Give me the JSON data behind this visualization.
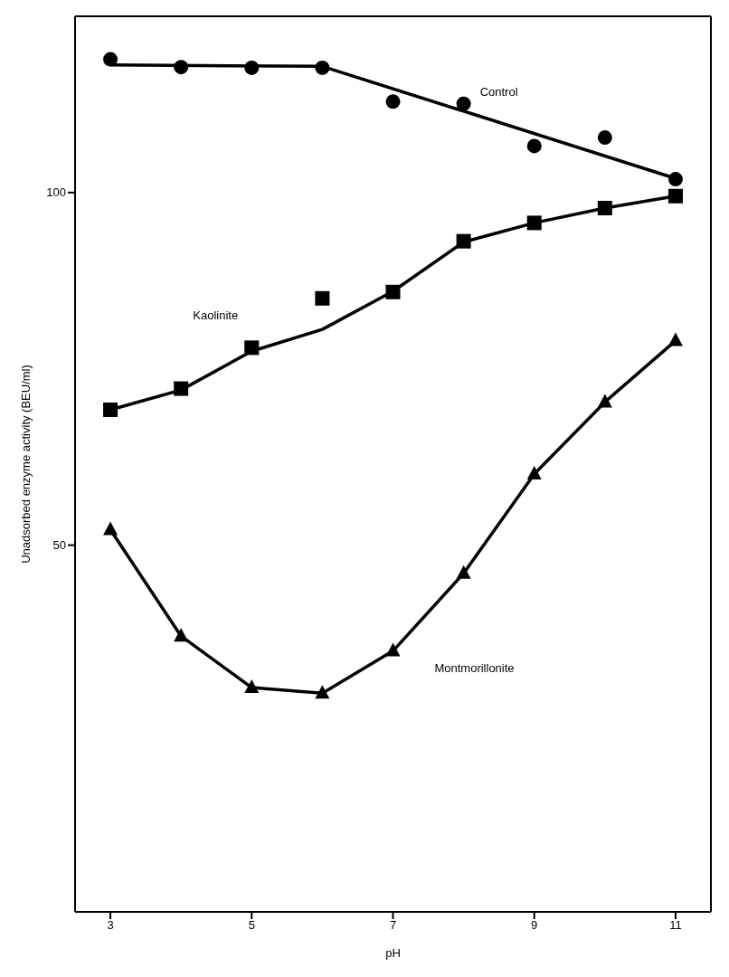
{
  "chart_data": {
    "type": "scatter",
    "xlabel": "pH",
    "ylabel": "Unadsorbed enzyme activity  (BEU/ml)",
    "xlim": [
      2.5,
      11.5
    ],
    "xticks": [
      3,
      5,
      7,
      9,
      11
    ],
    "ylim": [
      -2,
      125
    ],
    "yticks": [
      50,
      100
    ],
    "grid": false,
    "series": [
      {
        "name": "Control",
        "marker": "circle",
        "color": "#000000",
        "x": [
          3,
          4,
          5,
          6,
          7,
          8,
          9,
          10,
          11
        ],
        "values": [
          118.9,
          117.8,
          117.7,
          117.7,
          112.9,
          112.6,
          106.6,
          107.8,
          101.9
        ]
      },
      {
        "type": "line",
        "marker": "none",
        "color": "#000000",
        "x": [
          3,
          6,
          11
        ],
        "values": [
          118.1,
          117.9,
          102
        ]
      },
      {
        "name": "Kaolinite",
        "marker": "square",
        "color": "#000000",
        "x": [
          3,
          4,
          5,
          6,
          7,
          8,
          9,
          10,
          11
        ],
        "values": [
          69.2,
          72.2,
          78,
          85,
          85.9,
          93.1,
          95.7,
          97.8,
          99.5
        ]
      },
      {
        "type": "line",
        "marker": "none",
        "color": "#000000",
        "x": [
          3,
          4,
          5,
          6,
          7,
          8,
          9,
          10,
          11
        ],
        "values": [
          69.2,
          72,
          77.5,
          80.6,
          86,
          93,
          95.7,
          97.8,
          99.5
        ]
      },
      {
        "name": "Montmorillonite",
        "type": "line",
        "marker": "triangle",
        "color": "#000000",
        "x": [
          3,
          4,
          5,
          6,
          7,
          8,
          9,
          10,
          11
        ],
        "values": [
          52.2,
          37.1,
          29.8,
          29,
          35,
          46,
          60.1,
          70.3,
          79
        ]
      }
    ]
  }
}
